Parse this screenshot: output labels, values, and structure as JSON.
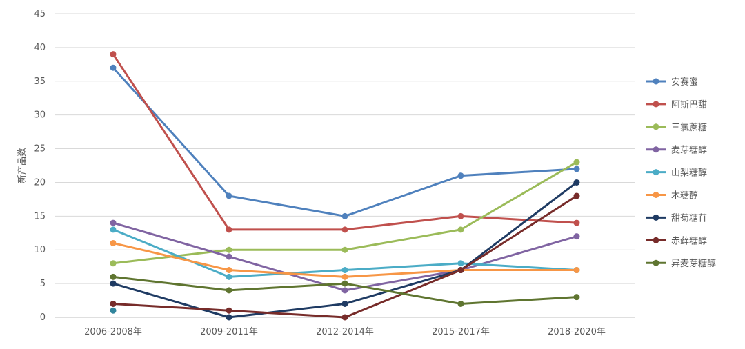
{
  "chart_data": {
    "type": "line",
    "ylabel": "新产品数",
    "xlabel": "",
    "ylim": [
      0,
      45
    ],
    "yticks": [
      0,
      5,
      10,
      15,
      20,
      25,
      30,
      35,
      40,
      45
    ],
    "grid": true,
    "legend_position": "right",
    "categories": [
      "2006-2008年",
      "2009-2011年",
      "2012-2014年",
      "2015-2017年",
      "2018-2020年"
    ],
    "series": [
      {
        "name": "安赛蜜",
        "color": "#4F81BD",
        "values": [
          37,
          18,
          15,
          21,
          22
        ]
      },
      {
        "name": "阿斯巴甜",
        "color": "#C0504D",
        "values": [
          39,
          13,
          13,
          15,
          14
        ]
      },
      {
        "name": "三氯蔗糖",
        "color": "#9BBB59",
        "values": [
          8,
          10,
          10,
          13,
          23
        ]
      },
      {
        "name": "麦芽糖醇",
        "color": "#8064A2",
        "values": [
          14,
          9,
          4,
          7,
          12
        ]
      },
      {
        "name": "山梨糖醇",
        "color": "#4BACC6",
        "values": [
          13,
          6,
          7,
          8,
          7
        ]
      },
      {
        "name": "木糖醇",
        "color": "#F79646",
        "values": [
          11,
          7,
          6,
          7,
          7
        ]
      },
      {
        "name": "甜菊糖苷",
        "color": "#1F3B63",
        "values": [
          5,
          0,
          2,
          7,
          20
        ]
      },
      {
        "name": "赤藓糖醇",
        "color": "#772C2A",
        "values": [
          2,
          1,
          0,
          7,
          18
        ]
      },
      {
        "name": "异麦芽糖醇",
        "color": "#5F7530",
        "values": [
          6,
          4,
          5,
          2,
          3
        ]
      }
    ],
    "extra_points": [
      {
        "category": "2006-2008年",
        "value": 1,
        "color": "#31859C"
      }
    ]
  }
}
